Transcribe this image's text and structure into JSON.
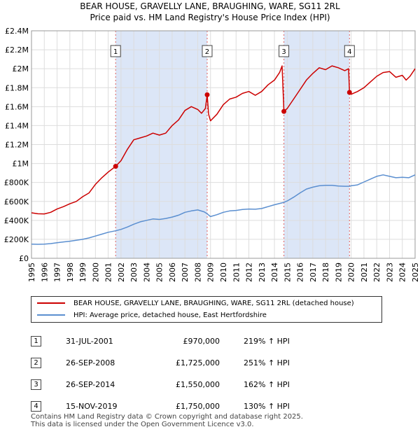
{
  "title_line1": "BEAR HOUSE, GRAVELLY LANE, BRAUGHING, WARE, SG11 2RL",
  "title_line2": "Price paid vs. HM Land Registry's House Price Index (HPI)",
  "colors": {
    "property": "#cc0000",
    "hpi": "#5b8fd0",
    "shade": "#dce6f7",
    "vline": "#e06060",
    "grid": "#dddddd"
  },
  "chart_data": {
    "type": "line",
    "xlim": [
      1995,
      2025
    ],
    "ylim": [
      0,
      2400000
    ],
    "x_ticks": [
      "1995",
      "1996",
      "1997",
      "1998",
      "1999",
      "2000",
      "2001",
      "2002",
      "2003",
      "2004",
      "2005",
      "2006",
      "2007",
      "2008",
      "2009",
      "2010",
      "2011",
      "2012",
      "2013",
      "2014",
      "2015",
      "2016",
      "2017",
      "2018",
      "2019",
      "2020",
      "2021",
      "2022",
      "2023",
      "2024",
      "2025"
    ],
    "y_ticks": [
      {
        "value": 0,
        "label": "£0"
      },
      {
        "value": 200000,
        "label": "£200K"
      },
      {
        "value": 400000,
        "label": "£400K"
      },
      {
        "value": 600000,
        "label": "£600K"
      },
      {
        "value": 800000,
        "label": "£800K"
      },
      {
        "value": 1000000,
        "label": "£1M"
      },
      {
        "value": 1200000,
        "label": "£1.2M"
      },
      {
        "value": 1400000,
        "label": "£1.4M"
      },
      {
        "value": 1600000,
        "label": "£1.6M"
      },
      {
        "value": 1800000,
        "label": "£1.8M"
      },
      {
        "value": 2000000,
        "label": "£2M"
      },
      {
        "value": 2200000,
        "label": "£2.2M"
      },
      {
        "value": 2400000,
        "label": "£2.4M"
      }
    ],
    "shaded_ranges": [
      [
        2001.58,
        2008.74
      ],
      [
        2014.74,
        2019.87
      ]
    ],
    "series": [
      {
        "name": "BEAR HOUSE, GRAVELLY LANE, BRAUGHING, WARE, SG11 2RL (detached house)",
        "color": "#cc0000",
        "points": [
          [
            1995.0,
            480000
          ],
          [
            1995.5,
            470000
          ],
          [
            1996.0,
            468000
          ],
          [
            1996.5,
            485000
          ],
          [
            1997.0,
            520000
          ],
          [
            1997.5,
            545000
          ],
          [
            1998.0,
            575000
          ],
          [
            1998.5,
            600000
          ],
          [
            1999.0,
            650000
          ],
          [
            1999.5,
            690000
          ],
          [
            2000.0,
            780000
          ],
          [
            2000.5,
            850000
          ],
          [
            2001.0,
            910000
          ],
          [
            2001.58,
            970000
          ],
          [
            2002.0,
            1030000
          ],
          [
            2002.5,
            1150000
          ],
          [
            2003.0,
            1250000
          ],
          [
            2003.5,
            1270000
          ],
          [
            2004.0,
            1290000
          ],
          [
            2004.5,
            1320000
          ],
          [
            2005.0,
            1300000
          ],
          [
            2005.5,
            1320000
          ],
          [
            2006.0,
            1400000
          ],
          [
            2006.5,
            1460000
          ],
          [
            2007.0,
            1560000
          ],
          [
            2007.5,
            1600000
          ],
          [
            2008.0,
            1570000
          ],
          [
            2008.3,
            1530000
          ],
          [
            2008.6,
            1580000
          ],
          [
            2008.74,
            1725000
          ],
          [
            2008.85,
            1520000
          ],
          [
            2009.0,
            1450000
          ],
          [
            2009.5,
            1520000
          ],
          [
            2010.0,
            1620000
          ],
          [
            2010.5,
            1680000
          ],
          [
            2011.0,
            1700000
          ],
          [
            2011.5,
            1740000
          ],
          [
            2012.0,
            1760000
          ],
          [
            2012.5,
            1720000
          ],
          [
            2013.0,
            1760000
          ],
          [
            2013.5,
            1830000
          ],
          [
            2014.0,
            1880000
          ],
          [
            2014.4,
            1960000
          ],
          [
            2014.6,
            2030000
          ],
          [
            2014.74,
            1550000
          ],
          [
            2015.0,
            1580000
          ],
          [
            2015.5,
            1680000
          ],
          [
            2016.0,
            1780000
          ],
          [
            2016.5,
            1880000
          ],
          [
            2017.0,
            1950000
          ],
          [
            2017.5,
            2010000
          ],
          [
            2018.0,
            1990000
          ],
          [
            2018.5,
            2030000
          ],
          [
            2019.0,
            2010000
          ],
          [
            2019.5,
            1980000
          ],
          [
            2019.8,
            2000000
          ],
          [
            2019.87,
            1750000
          ],
          [
            2020.0,
            1730000
          ],
          [
            2020.5,
            1760000
          ],
          [
            2021.0,
            1800000
          ],
          [
            2021.5,
            1860000
          ],
          [
            2022.0,
            1920000
          ],
          [
            2022.5,
            1960000
          ],
          [
            2023.0,
            1970000
          ],
          [
            2023.5,
            1910000
          ],
          [
            2024.0,
            1930000
          ],
          [
            2024.3,
            1880000
          ],
          [
            2024.6,
            1920000
          ],
          [
            2025.0,
            2000000
          ]
        ]
      },
      {
        "name": "HPI: Average price, detached house, East Hertfordshire",
        "color": "#5b8fd0",
        "points": [
          [
            1995.0,
            150000
          ],
          [
            1995.5,
            148000
          ],
          [
            1996.0,
            150000
          ],
          [
            1996.5,
            155000
          ],
          [
            1997.0,
            165000
          ],
          [
            1997.5,
            173000
          ],
          [
            1998.0,
            180000
          ],
          [
            1998.5,
            190000
          ],
          [
            1999.0,
            200000
          ],
          [
            1999.5,
            215000
          ],
          [
            2000.0,
            235000
          ],
          [
            2000.5,
            255000
          ],
          [
            2001.0,
            275000
          ],
          [
            2001.58,
            290000
          ],
          [
            2002.0,
            305000
          ],
          [
            2002.5,
            330000
          ],
          [
            2003.0,
            360000
          ],
          [
            2003.5,
            385000
          ],
          [
            2004.0,
            400000
          ],
          [
            2004.5,
            415000
          ],
          [
            2005.0,
            410000
          ],
          [
            2005.5,
            420000
          ],
          [
            2006.0,
            435000
          ],
          [
            2006.5,
            455000
          ],
          [
            2007.0,
            485000
          ],
          [
            2007.5,
            500000
          ],
          [
            2008.0,
            510000
          ],
          [
            2008.5,
            490000
          ],
          [
            2008.74,
            470000
          ],
          [
            2009.0,
            440000
          ],
          [
            2009.5,
            460000
          ],
          [
            2010.0,
            485000
          ],
          [
            2010.5,
            500000
          ],
          [
            2011.0,
            505000
          ],
          [
            2011.5,
            515000
          ],
          [
            2012.0,
            520000
          ],
          [
            2012.5,
            518000
          ],
          [
            2013.0,
            525000
          ],
          [
            2013.5,
            545000
          ],
          [
            2014.0,
            565000
          ],
          [
            2014.74,
            590000
          ],
          [
            2015.0,
            605000
          ],
          [
            2015.5,
            645000
          ],
          [
            2016.0,
            690000
          ],
          [
            2016.5,
            730000
          ],
          [
            2017.0,
            750000
          ],
          [
            2017.5,
            765000
          ],
          [
            2018.0,
            770000
          ],
          [
            2018.5,
            770000
          ],
          [
            2019.0,
            762000
          ],
          [
            2019.5,
            760000
          ],
          [
            2019.87,
            760000
          ],
          [
            2020.0,
            765000
          ],
          [
            2020.5,
            775000
          ],
          [
            2021.0,
            805000
          ],
          [
            2021.5,
            835000
          ],
          [
            2022.0,
            865000
          ],
          [
            2022.5,
            880000
          ],
          [
            2023.0,
            865000
          ],
          [
            2023.5,
            850000
          ],
          [
            2024.0,
            855000
          ],
          [
            2024.5,
            850000
          ],
          [
            2025.0,
            880000
          ]
        ]
      }
    ],
    "sales": [
      {
        "label": "1",
        "x": 2001.58,
        "y": 970000
      },
      {
        "label": "2",
        "x": 2008.74,
        "y": 1725000
      },
      {
        "label": "3",
        "x": 2014.74,
        "y": 1550000
      },
      {
        "label": "4",
        "x": 2019.87,
        "y": 1750000
      }
    ]
  },
  "legend": {
    "property_label": "BEAR HOUSE, GRAVELLY LANE, BRAUGHING, WARE, SG11 2RL (detached house)",
    "hpi_label": "HPI: Average price, detached house, East Hertfordshire"
  },
  "sales_table": [
    {
      "num": "1",
      "date": "31-JUL-2001",
      "price": "£970,000",
      "hpi": "219% ↑ HPI"
    },
    {
      "num": "2",
      "date": "26-SEP-2008",
      "price": "£1,725,000",
      "hpi": "251% ↑ HPI"
    },
    {
      "num": "3",
      "date": "26-SEP-2014",
      "price": "£1,550,000",
      "hpi": "162% ↑ HPI"
    },
    {
      "num": "4",
      "date": "15-NOV-2019",
      "price": "£1,750,000",
      "hpi": "130% ↑ HPI"
    }
  ],
  "footer": {
    "line1": "Contains HM Land Registry data © Crown copyright and database right 2025.",
    "line2": "This data is licensed under the Open Government Licence v3.0."
  }
}
